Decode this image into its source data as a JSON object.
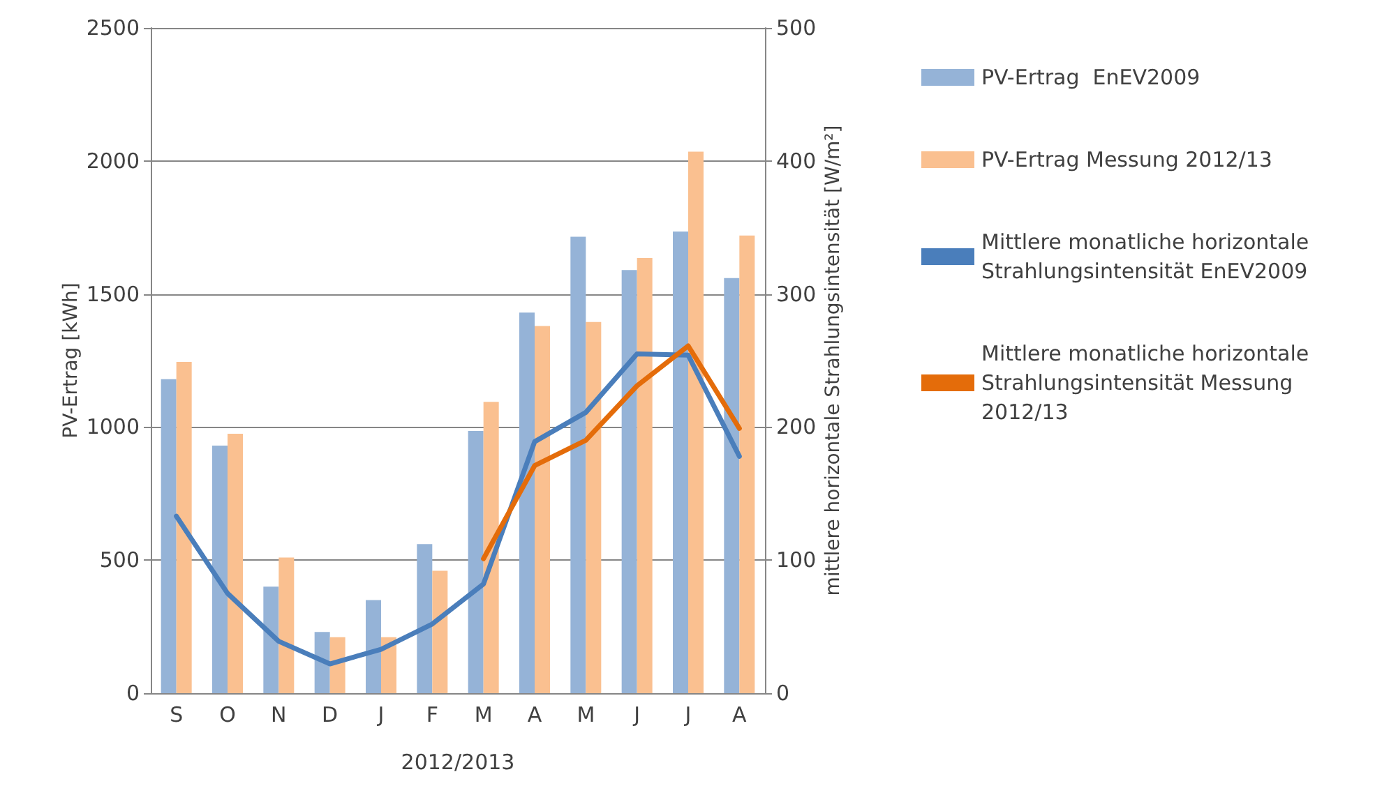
{
  "chart_data": {
    "type": "bar",
    "categories": [
      "S",
      "O",
      "N",
      "D",
      "J",
      "F",
      "M",
      "A",
      "M",
      "J",
      "J",
      "A"
    ],
    "xlabel": "2012/2013",
    "ylabel": "PV-Ertrag [kWh]",
    "y2label": "mittlere horizontale Strahlungsintensität [W/m²]",
    "ylim": [
      0,
      2500
    ],
    "yticks": [
      0,
      500,
      1000,
      1500,
      2000,
      2500
    ],
    "y2lim": [
      0,
      500
    ],
    "y2ticks": [
      0,
      100,
      200,
      300,
      400,
      500
    ],
    "grid": "y",
    "legend": "right",
    "series": [
      {
        "name": "PV-Ertrag  EnEV2009",
        "color": "#95b3d7",
        "values": [
          1180,
          930,
          400,
          230,
          350,
          560,
          985,
          1430,
          1715,
          1590,
          1735,
          1560
        ]
      },
      {
        "name": "PV-Ertrag Messung 2012/13",
        "color": "#fac090",
        "values": [
          1245,
          975,
          510,
          210,
          210,
          460,
          1095,
          1380,
          1395,
          1635,
          2035,
          1720
        ]
      },
      {
        "name": "Mittlere monatliche horizontale Strahlungsintensität EnEV2009",
        "type": "line",
        "axis": "y2",
        "color": "#4a7ebb",
        "values": [
          133,
          75,
          39,
          22,
          33,
          52,
          82,
          189,
          211,
          255,
          254,
          178
        ]
      },
      {
        "name": "Mittlere monatliche horizontale Strahlungsintensität Messung 2012/13",
        "type": "line",
        "axis": "y2",
        "color": "#e46c0a",
        "values": [
          null,
          null,
          null,
          null,
          null,
          null,
          101,
          171,
          190,
          231,
          261,
          199
        ]
      }
    ]
  }
}
